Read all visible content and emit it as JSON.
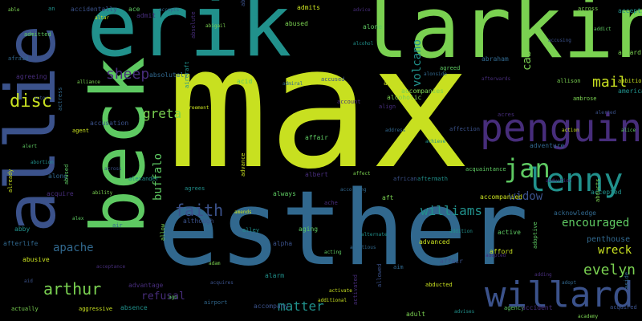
{
  "colors": {
    "background": "#000000",
    "yellow_green": "#c8e020",
    "teal": "#21918c",
    "green": "#5ec962",
    "lime": "#7ad151",
    "blue": "#31688e",
    "indigo": "#3b528b",
    "purple": "#472d7b",
    "dark_purple": "#440154"
  },
  "words": {
    "max": "max",
    "erik": "erik",
    "larkin": "larkin",
    "esther": "esther",
    "allie": "allie",
    "beck": "beck",
    "penguin": "penguin",
    "willard": "willard",
    "lenny": "lenny",
    "jan": "jan",
    "disc": "disc",
    "arthur": "arthur",
    "faith": "faith",
    "sheep": "sheep",
    "mail": "mail",
    "evelyn": "evelyn",
    "williams": "williams",
    "matter": "matter",
    "greta": "greta",
    "apache": "apache",
    "buffalo": "buffalo",
    "wreck": "wreck",
    "encouraged": "encouraged",
    "refusal": "refusal",
    "widow": "widow",
    "penthouse": "penthouse",
    "volcano": "volcano",
    "cab": "cab"
  },
  "small_words": [
    "able",
    "an",
    "ace",
    "accepts",
    "abnormal",
    "admits",
    "advice",
    "across",
    "accepting",
    "addict",
    "afraid",
    "accidentally",
    "altar",
    "absolute",
    "abused",
    "alcohol",
    "agreed",
    "abraham",
    "accusing",
    "ambition",
    "agreeing",
    "alliance",
    "aircraft",
    "acid",
    "admiral",
    "accused",
    "alive",
    "afterwards",
    "allison",
    "america",
    "alert",
    "actress",
    "accusation",
    "agreement",
    "account",
    "alcoholic",
    "achieve",
    "acquaintance",
    "adventure",
    "alerted",
    "already",
    "acquire",
    "ability",
    "agrees",
    "always",
    "according",
    "african",
    "accompanied",
    "abduction",
    "abducts",
    "abby",
    "alex",
    "air",
    "although",
    "amends",
    "ache",
    "aft",
    "addition",
    "adoptive",
    "acknowledge",
    "aid",
    "aggressive",
    "advantage",
    "adam",
    "alley",
    "aging",
    "ambitious",
    "allowed",
    "advanced",
    "adopted",
    "actually",
    "absence",
    "ago",
    "airport",
    "accompany",
    "additional",
    "activated",
    "adult",
    "advises",
    "agency",
    "afterlife",
    "actor",
    "agent",
    "admit",
    "abigail",
    "alien",
    "alone",
    "alonside",
    "affection",
    "afford",
    "adding",
    "ambrose",
    "accepted",
    "alice",
    "aside",
    "alpha",
    "activate",
    "align",
    "accompanies",
    "alternate",
    "admitted",
    "along",
    "across",
    "advance",
    "albert",
    "affect",
    "aftermath",
    "active",
    "adopt",
    "acquired",
    "abusive",
    "acceptance",
    "allow",
    "alarm",
    "acting",
    "aim",
    "affair",
    "action",
    "acres",
    "aboard",
    "abortion",
    "abused",
    "absolutely",
    "acquires",
    "abducted",
    "accident",
    "academy",
    "alexander",
    "affair",
    "address",
    "adventure",
    "advocate",
    "alamein",
    "aisle",
    "aged",
    "ahead",
    "actual",
    "abandoned",
    "abundance",
    "accepts"
  ]
}
